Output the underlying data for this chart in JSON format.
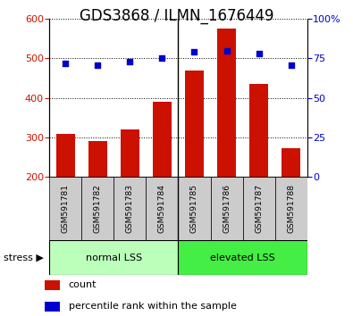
{
  "title": "GDS3868 / ILMN_1676449",
  "samples": [
    "GSM591781",
    "GSM591782",
    "GSM591783",
    "GSM591784",
    "GSM591785",
    "GSM591786",
    "GSM591787",
    "GSM591788"
  ],
  "counts": [
    310,
    290,
    320,
    390,
    470,
    575,
    435,
    273
  ],
  "percentile_ranks": [
    72,
    71,
    73,
    75,
    79,
    80,
    78,
    71
  ],
  "ylim_left": [
    200,
    600
  ],
  "yticks_left": [
    200,
    300,
    400,
    500,
    600
  ],
  "ylim_right": [
    0,
    100
  ],
  "yticks_right": [
    0,
    25,
    50,
    75,
    100
  ],
  "bar_color": "#CC1100",
  "dot_color": "#0000CC",
  "bar_width": 0.6,
  "groups": [
    {
      "label": "normal LSS",
      "start": 0,
      "end": 4,
      "color": "#BBFFBB"
    },
    {
      "label": "elevated LSS",
      "start": 4,
      "end": 8,
      "color": "#44EE44"
    }
  ],
  "sample_box_color": "#CCCCCC",
  "stress_label": "stress ▶",
  "legend_items": [
    {
      "color": "#CC1100",
      "label": "count"
    },
    {
      "color": "#0000CC",
      "label": "percentile rank within the sample"
    }
  ],
  "grid_color": "black",
  "title_fontsize": 12,
  "tick_fontsize": 8,
  "label_fontsize": 9,
  "right_tick_label": "100%"
}
